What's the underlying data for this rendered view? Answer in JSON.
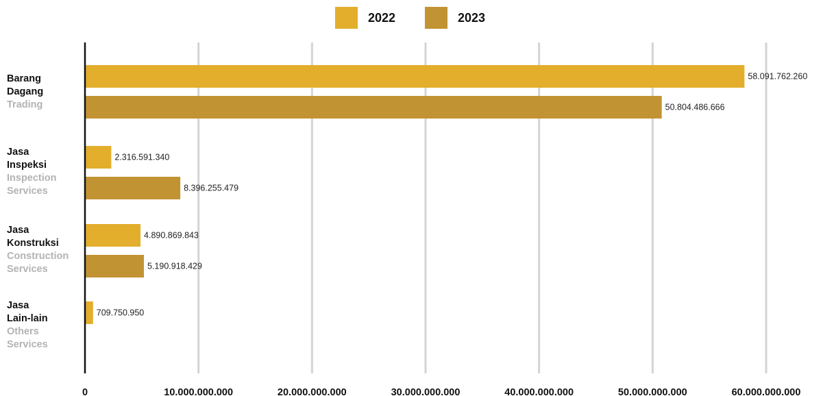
{
  "colors": {
    "y2022": "#e2ae2c",
    "y2023": "#c29332",
    "grid": "#d4d4d4",
    "axis": "#111111"
  },
  "legend": [
    {
      "label": "2022",
      "color": "#e2ae2c"
    },
    {
      "label": "2023",
      "color": "#c29332"
    }
  ],
  "categories": [
    {
      "id_line1": "Barang",
      "id_line2": "Dagang",
      "en_line1": "Trading",
      "en_line2": ""
    },
    {
      "id_line1": "Jasa",
      "id_line2": "Inspeksi",
      "en_line1": "Inspection",
      "en_line2": "Services"
    },
    {
      "id_line1": "Jasa",
      "id_line2": "Konstruksi",
      "en_line1": "Construction",
      "en_line2": "Services"
    },
    {
      "id_line1": "Jasa",
      "id_line2": "Lain-lain",
      "en_line1": "Others",
      "en_line2": "Services"
    }
  ],
  "chart_data": {
    "type": "bar",
    "orientation": "horizontal",
    "categories": [
      "Barang Dagang Trading",
      "Jasa Inspeksi Inspection Services",
      "Jasa Konstruksi Construction Services",
      "Jasa Lain-lain Others Services"
    ],
    "series": [
      {
        "name": "2022",
        "values": [
          58091762260,
          2316591340,
          4890869843,
          709750950
        ],
        "labels": [
          "58.091.762.260",
          "2.316.591.340",
          "4.890.869.843",
          "709.750.950"
        ]
      },
      {
        "name": "2023",
        "values": [
          50804486666,
          8396255479,
          5190918429,
          null
        ],
        "labels": [
          "50.804.486.666",
          "8.396.255.479",
          "5.190.918.429",
          ""
        ]
      }
    ],
    "xlim": [
      0,
      60000000000
    ],
    "xticks": [
      0,
      10000000000,
      20000000000,
      30000000000,
      40000000000,
      50000000000,
      60000000000
    ],
    "xtick_labels": [
      "0",
      "10.000.000.000",
      "20.000.000.000",
      "30.000.000.000",
      "40.000.000.000",
      "50.000.000.000",
      "60.000.000.000"
    ],
    "grid": true,
    "legend_position": "top-center"
  }
}
